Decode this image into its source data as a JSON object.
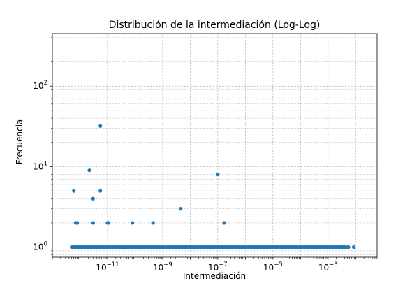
{
  "chart_data": {
    "type": "scatter",
    "title": "Distribución de la intermediación (Log-Log)",
    "xlabel": "Intermediación",
    "ylabel": "Frecuencia",
    "xscale": "log",
    "yscale": "log",
    "xlim": [
      1e-13,
      0.06
    ],
    "ylim": [
      0.75,
      450
    ],
    "grid": true,
    "x_ticks": [
      {
        "value": 1e-11,
        "base": "10",
        "exp": "−11"
      },
      {
        "value": 1e-09,
        "base": "10",
        "exp": "−9"
      },
      {
        "value": 1e-07,
        "base": "10",
        "exp": "−7"
      },
      {
        "value": 1e-05,
        "base": "10",
        "exp": "−5"
      },
      {
        "value": 0.001,
        "base": "10",
        "exp": "−3"
      }
    ],
    "y_ticks": [
      {
        "value": 1,
        "base": "10",
        "exp": "0"
      },
      {
        "value": 10,
        "base": "10",
        "exp": "1"
      },
      {
        "value": 100,
        "base": "10",
        "exp": "2"
      }
    ],
    "color": "#1f77b4",
    "band": {
      "y": 1,
      "x_start": 5e-13,
      "x_end": 0.004,
      "density_per_decade": 22
    },
    "points": [
      {
        "x": 6e-13,
        "y": 5
      },
      {
        "x": 7e-13,
        "y": 2
      },
      {
        "x": 8e-13,
        "y": 2
      },
      {
        "x": 2.2e-12,
        "y": 9
      },
      {
        "x": 3e-12,
        "y": 4
      },
      {
        "x": 3e-12,
        "y": 2
      },
      {
        "x": 5.5e-12,
        "y": 32
      },
      {
        "x": 5.5e-12,
        "y": 5
      },
      {
        "x": 1e-11,
        "y": 2
      },
      {
        "x": 1.1e-11,
        "y": 2
      },
      {
        "x": 8e-11,
        "y": 2
      },
      {
        "x": 4.5e-10,
        "y": 2
      },
      {
        "x": 4.5e-09,
        "y": 3
      },
      {
        "x": 1e-07,
        "y": 8
      },
      {
        "x": 1.7e-07,
        "y": 2
      },
      {
        "x": 6e-13,
        "y": 1
      },
      {
        "x": 7e-13,
        "y": 1
      },
      {
        "x": 8e-13,
        "y": 1
      },
      {
        "x": 1.5e-12,
        "y": 1
      },
      {
        "x": 2.5e-12,
        "y": 1
      },
      {
        "x": 0.0035,
        "y": 1
      },
      {
        "x": 0.005,
        "y": 1
      },
      {
        "x": 0.0055,
        "y": 1
      },
      {
        "x": 0.0085,
        "y": 1
      }
    ]
  }
}
